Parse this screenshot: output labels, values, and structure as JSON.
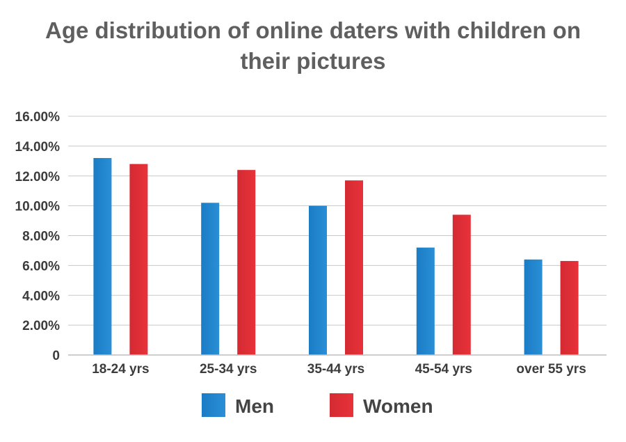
{
  "chart_data": {
    "type": "bar",
    "title_lines": [
      "Age distribution of online daters with children on",
      "their pictures"
    ],
    "categories": [
      "18-24 yrs",
      "25-34 yrs",
      "35-44 yrs",
      "45-54 yrs",
      "over 55 yrs"
    ],
    "series": [
      {
        "name": "Men",
        "values": [
          13.2,
          10.2,
          10.0,
          7.2,
          6.4
        ],
        "color": "#1a7cc4",
        "color_light": "#2a8fd6"
      },
      {
        "name": "Women",
        "values": [
          12.8,
          12.4,
          11.7,
          9.4,
          6.3
        ],
        "color": "#d42a32",
        "color_light": "#e8323a"
      }
    ],
    "ylim": [
      0,
      16
    ],
    "yticks": [
      0,
      2,
      4,
      6,
      8,
      10,
      12,
      14,
      16
    ],
    "ytick_labels": [
      "0",
      "2.00%",
      "4.00%",
      "6.00%",
      "8.00%",
      "10.00%",
      "12.00%",
      "14.00%",
      "16.00%"
    ],
    "grid": true,
    "legend_position": "bottom",
    "gridline_color": "#c8c8c8",
    "axis_color": "#bdbdbd"
  }
}
